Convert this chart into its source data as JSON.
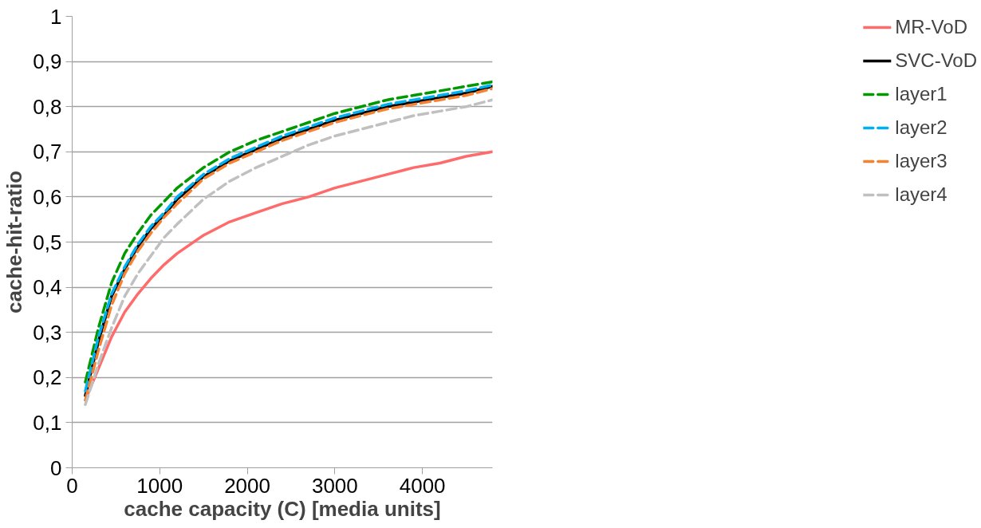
{
  "chart_data": {
    "type": "line",
    "xlabel": "cache capacity (C) [media units]",
    "ylabel": "cache-hit-ratio",
    "x": [
      150,
      300,
      450,
      600,
      750,
      900,
      1050,
      1200,
      1500,
      1800,
      2100,
      2400,
      2700,
      3000,
      3300,
      3600,
      3900,
      4200,
      4500,
      4800
    ],
    "xlim": [
      0,
      4800
    ],
    "xticks": [
      0,
      1000,
      2000,
      3000,
      4000
    ],
    "ylim": [
      0,
      1
    ],
    "yticks": [
      0,
      {
        "value": 0.1,
        "label": "0,1"
      },
      {
        "value": 0.2,
        "label": "0,2"
      },
      {
        "value": 0.3,
        "label": "0,3"
      },
      {
        "value": 0.4,
        "label": "0,4"
      },
      {
        "value": 0.5,
        "label": "0,5"
      },
      {
        "value": 0.6,
        "label": "0,6"
      },
      {
        "value": 0.7,
        "label": "0,7"
      },
      {
        "value": 0.8,
        "label": "0,8"
      },
      {
        "value": 0.9,
        "label": "0,9"
      },
      1
    ],
    "grid": "y",
    "legend": "right",
    "marker": "none",
    "series": [
      {
        "name": "MR-VoD",
        "color": "#ff6b6b",
        "line_style": "solid",
        "values": [
          0.15,
          0.22,
          0.29,
          0.345,
          0.385,
          0.42,
          0.45,
          0.475,
          0.515,
          0.545,
          0.565,
          0.585,
          0.6,
          0.62,
          0.635,
          0.65,
          0.665,
          0.675,
          0.69,
          0.7
        ]
      },
      {
        "name": "SVC-VoD",
        "color": "#000000",
        "line_style": "solid",
        "values": [
          0.16,
          0.28,
          0.38,
          0.44,
          0.49,
          0.53,
          0.56,
          0.595,
          0.645,
          0.68,
          0.705,
          0.73,
          0.75,
          0.77,
          0.785,
          0.8,
          0.81,
          0.82,
          0.83,
          0.845
        ]
      },
      {
        "name": "layer1",
        "color": "#009900",
        "line_style": "dashed",
        "values": [
          0.19,
          0.31,
          0.41,
          0.475,
          0.52,
          0.56,
          0.59,
          0.62,
          0.665,
          0.7,
          0.725,
          0.745,
          0.765,
          0.785,
          0.8,
          0.815,
          0.825,
          0.835,
          0.845,
          0.855
        ]
      },
      {
        "name": "layer2",
        "color": "#00b0f0",
        "line_style": "dashed",
        "values": [
          0.17,
          0.29,
          0.385,
          0.445,
          0.495,
          0.535,
          0.565,
          0.6,
          0.65,
          0.685,
          0.71,
          0.735,
          0.755,
          0.775,
          0.79,
          0.805,
          0.815,
          0.825,
          0.835,
          0.848
        ]
      },
      {
        "name": "layer3",
        "color": "#f58231",
        "line_style": "dashed",
        "values": [
          0.15,
          0.26,
          0.36,
          0.43,
          0.48,
          0.52,
          0.555,
          0.585,
          0.64,
          0.675,
          0.7,
          0.725,
          0.745,
          0.765,
          0.78,
          0.795,
          0.805,
          0.815,
          0.825,
          0.84
        ]
      },
      {
        "name": "layer4",
        "color": "#c0c0c0",
        "line_style": "dashed",
        "values": [
          0.14,
          0.23,
          0.31,
          0.38,
          0.43,
          0.47,
          0.51,
          0.54,
          0.595,
          0.635,
          0.665,
          0.69,
          0.715,
          0.735,
          0.75,
          0.765,
          0.78,
          0.79,
          0.8,
          0.815
        ]
      }
    ]
  }
}
